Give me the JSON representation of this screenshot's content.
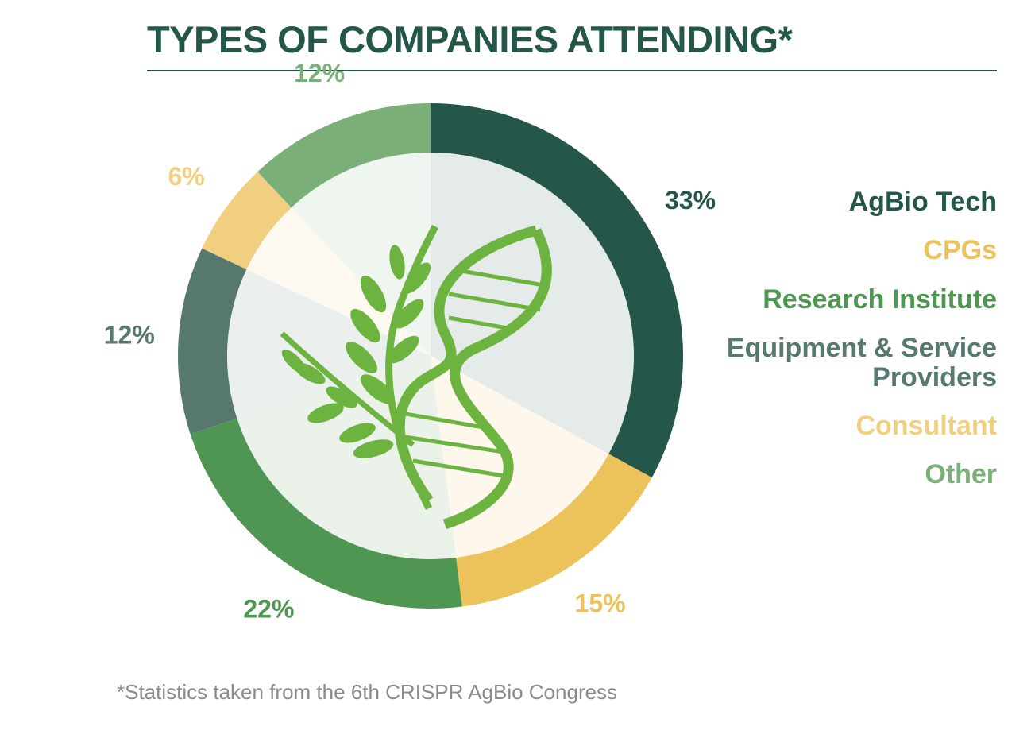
{
  "chart_data": {
    "type": "donut",
    "title": "TYPES OF COMPANIES ATTENDING*",
    "categories": [
      "AgBio Tech",
      "CPGs",
      "Research Institute",
      "Equipment & Service Providers",
      "Consultant",
      "Other"
    ],
    "values": [
      33,
      15,
      22,
      12,
      6,
      12
    ],
    "value_labels": [
      "33%",
      "15%",
      "22%",
      "12%",
      "6%",
      "12%"
    ],
    "colors": [
      "#24564a",
      "#ecc35a",
      "#4e9651",
      "#57786e",
      "#f0d080",
      "#7aaf78"
    ],
    "footnote": "*Statistics taken from the 6th CRISPR AgBio Congress"
  }
}
